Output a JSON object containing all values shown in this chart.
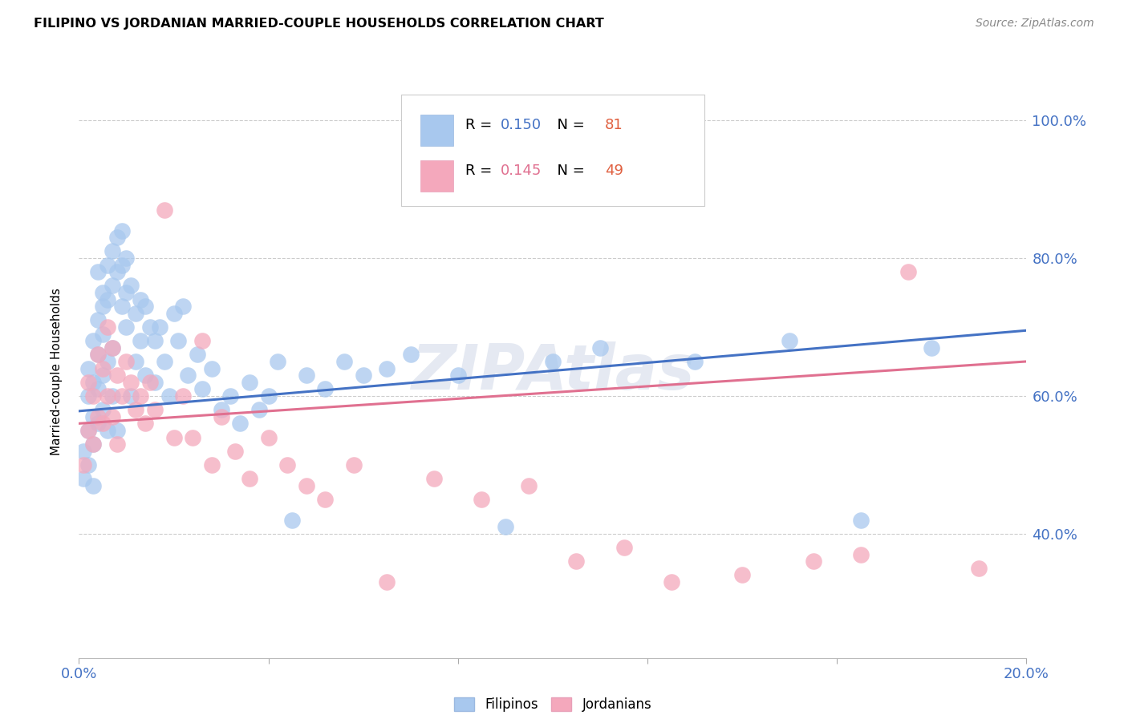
{
  "title": "FILIPINO VS JORDANIAN MARRIED-COUPLE HOUSEHOLDS CORRELATION CHART",
  "source": "Source: ZipAtlas.com",
  "ylabel_label": "Married-couple Households",
  "xlim": [
    0.0,
    0.2
  ],
  "ylim": [
    0.22,
    1.05
  ],
  "xticks": [
    0.0,
    0.2
  ],
  "yticks": [
    0.4,
    0.6,
    0.8,
    1.0
  ],
  "ytick_labels": [
    "40.0%",
    "60.0%",
    "80.0%",
    "100.0%"
  ],
  "xtick_labels": [
    "0.0%",
    "20.0%"
  ],
  "filipino_color": "#A8C8EE",
  "jordanian_color": "#F4A8BC",
  "trend_filipino_color": "#4472C4",
  "trend_jordanian_color": "#E07090",
  "R_filipino": 0.15,
  "N_filipino": 81,
  "R_jordanian": 0.145,
  "N_jordanian": 49,
  "watermark": "ZIPAtlas",
  "filipino_x": [
    0.001,
    0.001,
    0.002,
    0.002,
    0.002,
    0.002,
    0.003,
    0.003,
    0.003,
    0.003,
    0.003,
    0.004,
    0.004,
    0.004,
    0.004,
    0.004,
    0.005,
    0.005,
    0.005,
    0.005,
    0.005,
    0.006,
    0.006,
    0.006,
    0.006,
    0.007,
    0.007,
    0.007,
    0.007,
    0.008,
    0.008,
    0.008,
    0.009,
    0.009,
    0.009,
    0.01,
    0.01,
    0.01,
    0.011,
    0.011,
    0.012,
    0.012,
    0.013,
    0.013,
    0.014,
    0.014,
    0.015,
    0.016,
    0.016,
    0.017,
    0.018,
    0.019,
    0.02,
    0.021,
    0.022,
    0.023,
    0.025,
    0.026,
    0.028,
    0.03,
    0.032,
    0.034,
    0.036,
    0.038,
    0.04,
    0.042,
    0.045,
    0.048,
    0.052,
    0.056,
    0.06,
    0.065,
    0.07,
    0.08,
    0.09,
    0.1,
    0.11,
    0.13,
    0.15,
    0.165,
    0.18
  ],
  "filipino_y": [
    0.48,
    0.52,
    0.6,
    0.55,
    0.64,
    0.5,
    0.62,
    0.57,
    0.53,
    0.47,
    0.68,
    0.71,
    0.66,
    0.78,
    0.61,
    0.56,
    0.73,
    0.69,
    0.63,
    0.58,
    0.75,
    0.79,
    0.74,
    0.65,
    0.55,
    0.81,
    0.76,
    0.67,
    0.6,
    0.83,
    0.78,
    0.55,
    0.84,
    0.79,
    0.73,
    0.8,
    0.75,
    0.7,
    0.76,
    0.6,
    0.72,
    0.65,
    0.74,
    0.68,
    0.73,
    0.63,
    0.7,
    0.68,
    0.62,
    0.7,
    0.65,
    0.6,
    0.72,
    0.68,
    0.73,
    0.63,
    0.66,
    0.61,
    0.64,
    0.58,
    0.6,
    0.56,
    0.62,
    0.58,
    0.6,
    0.65,
    0.42,
    0.63,
    0.61,
    0.65,
    0.63,
    0.64,
    0.66,
    0.63,
    0.41,
    0.65,
    0.67,
    0.65,
    0.68,
    0.42,
    0.67
  ],
  "jordanian_x": [
    0.001,
    0.002,
    0.002,
    0.003,
    0.003,
    0.004,
    0.004,
    0.005,
    0.005,
    0.006,
    0.006,
    0.007,
    0.007,
    0.008,
    0.008,
    0.009,
    0.01,
    0.011,
    0.012,
    0.013,
    0.014,
    0.015,
    0.016,
    0.018,
    0.02,
    0.022,
    0.024,
    0.026,
    0.028,
    0.03,
    0.033,
    0.036,
    0.04,
    0.044,
    0.048,
    0.052,
    0.058,
    0.065,
    0.075,
    0.085,
    0.095,
    0.105,
    0.115,
    0.125,
    0.14,
    0.155,
    0.165,
    0.175,
    0.19
  ],
  "jordanian_y": [
    0.5,
    0.62,
    0.55,
    0.6,
    0.53,
    0.66,
    0.57,
    0.64,
    0.56,
    0.7,
    0.6,
    0.67,
    0.57,
    0.63,
    0.53,
    0.6,
    0.65,
    0.62,
    0.58,
    0.6,
    0.56,
    0.62,
    0.58,
    0.87,
    0.54,
    0.6,
    0.54,
    0.68,
    0.5,
    0.57,
    0.52,
    0.48,
    0.54,
    0.5,
    0.47,
    0.45,
    0.5,
    0.33,
    0.48,
    0.45,
    0.47,
    0.36,
    0.38,
    0.33,
    0.34,
    0.36,
    0.37,
    0.78,
    0.35
  ],
  "trend_fil_x0": 0.0,
  "trend_fil_y0": 0.578,
  "trend_fil_x1": 0.2,
  "trend_fil_y1": 0.695,
  "trend_jor_x0": 0.0,
  "trend_jor_y0": 0.56,
  "trend_jor_x1": 0.2,
  "trend_jor_y1": 0.65
}
